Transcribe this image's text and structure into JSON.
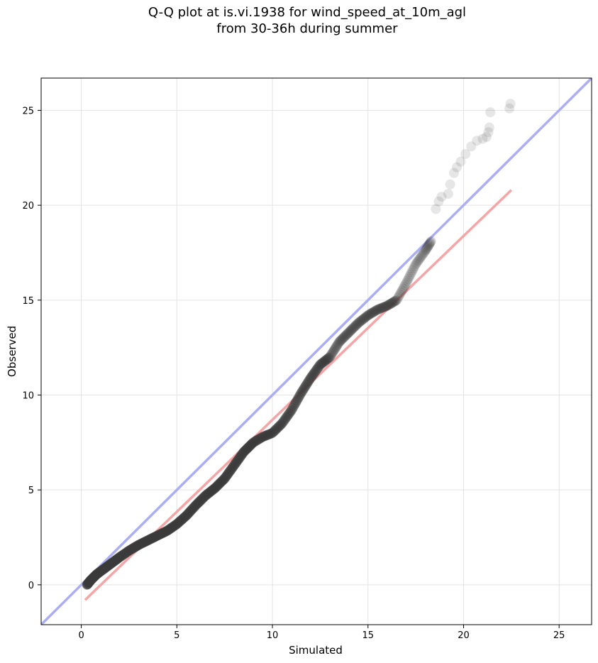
{
  "chart_data": {
    "type": "scatter",
    "title": "Q-Q plot at is.vi.1938 for wind_speed_at_10m_agl",
    "subtitle": "from 30-36h during summer",
    "xlabel": "Simulated",
    "ylabel": "Observed",
    "xlim": [
      -2.1,
      26.7
    ],
    "ylim": [
      -2.1,
      26.7
    ],
    "xticks": [
      0,
      5,
      10,
      15,
      20,
      25
    ],
    "yticks": [
      0,
      5,
      10,
      15,
      20,
      25
    ],
    "grid": true,
    "quantile_curve": [
      [
        0.3,
        0.0
      ],
      [
        0.5,
        0.25
      ],
      [
        0.8,
        0.55
      ],
      [
        1.2,
        0.85
      ],
      [
        1.6,
        1.15
      ],
      [
        2.0,
        1.45
      ],
      [
        2.5,
        1.8
      ],
      [
        3.0,
        2.1
      ],
      [
        3.5,
        2.35
      ],
      [
        4.0,
        2.6
      ],
      [
        4.5,
        2.85
      ],
      [
        5.0,
        3.2
      ],
      [
        5.5,
        3.65
      ],
      [
        6.0,
        4.2
      ],
      [
        6.5,
        4.7
      ],
      [
        7.0,
        5.1
      ],
      [
        7.5,
        5.6
      ],
      [
        8.0,
        6.3
      ],
      [
        8.5,
        7.0
      ],
      [
        9.0,
        7.5
      ],
      [
        9.5,
        7.8
      ],
      [
        10.0,
        8.0
      ],
      [
        10.5,
        8.5
      ],
      [
        11.0,
        9.2
      ],
      [
        11.5,
        10.1
      ],
      [
        12.0,
        10.9
      ],
      [
        12.5,
        11.6
      ],
      [
        13.0,
        12.0
      ],
      [
        13.5,
        12.8
      ],
      [
        14.0,
        13.3
      ],
      [
        14.5,
        13.8
      ],
      [
        15.0,
        14.2
      ],
      [
        15.5,
        14.5
      ],
      [
        16.0,
        14.7
      ],
      [
        16.5,
        15.0
      ],
      [
        17.0,
        15.9
      ],
      [
        17.5,
        16.9
      ],
      [
        18.0,
        17.6
      ],
      [
        18.3,
        18.1
      ]
    ],
    "outlier_points": [
      [
        18.55,
        19.8
      ],
      [
        18.7,
        20.2
      ],
      [
        18.85,
        20.45
      ],
      [
        19.2,
        20.6
      ],
      [
        19.3,
        21.1
      ],
      [
        19.5,
        21.7
      ],
      [
        19.65,
        22.0
      ],
      [
        19.85,
        22.3
      ],
      [
        20.1,
        22.7
      ],
      [
        20.4,
        23.1
      ],
      [
        20.7,
        23.4
      ],
      [
        21.0,
        23.5
      ],
      [
        21.2,
        23.6
      ],
      [
        21.3,
        23.85
      ],
      [
        21.35,
        24.1
      ],
      [
        21.4,
        24.9
      ],
      [
        22.4,
        25.1
      ],
      [
        22.45,
        25.35
      ]
    ],
    "series": [
      {
        "type": "reference_line",
        "color": "#a9aef5",
        "from": [
          -2.1,
          -2.1
        ],
        "to": [
          26.7,
          26.7
        ]
      },
      {
        "type": "fit_line",
        "color": "#f5a5a5",
        "from": [
          0.2,
          -0.8
        ],
        "to": [
          22.5,
          20.8
        ]
      }
    ],
    "point_color": "#3a3a3a"
  }
}
